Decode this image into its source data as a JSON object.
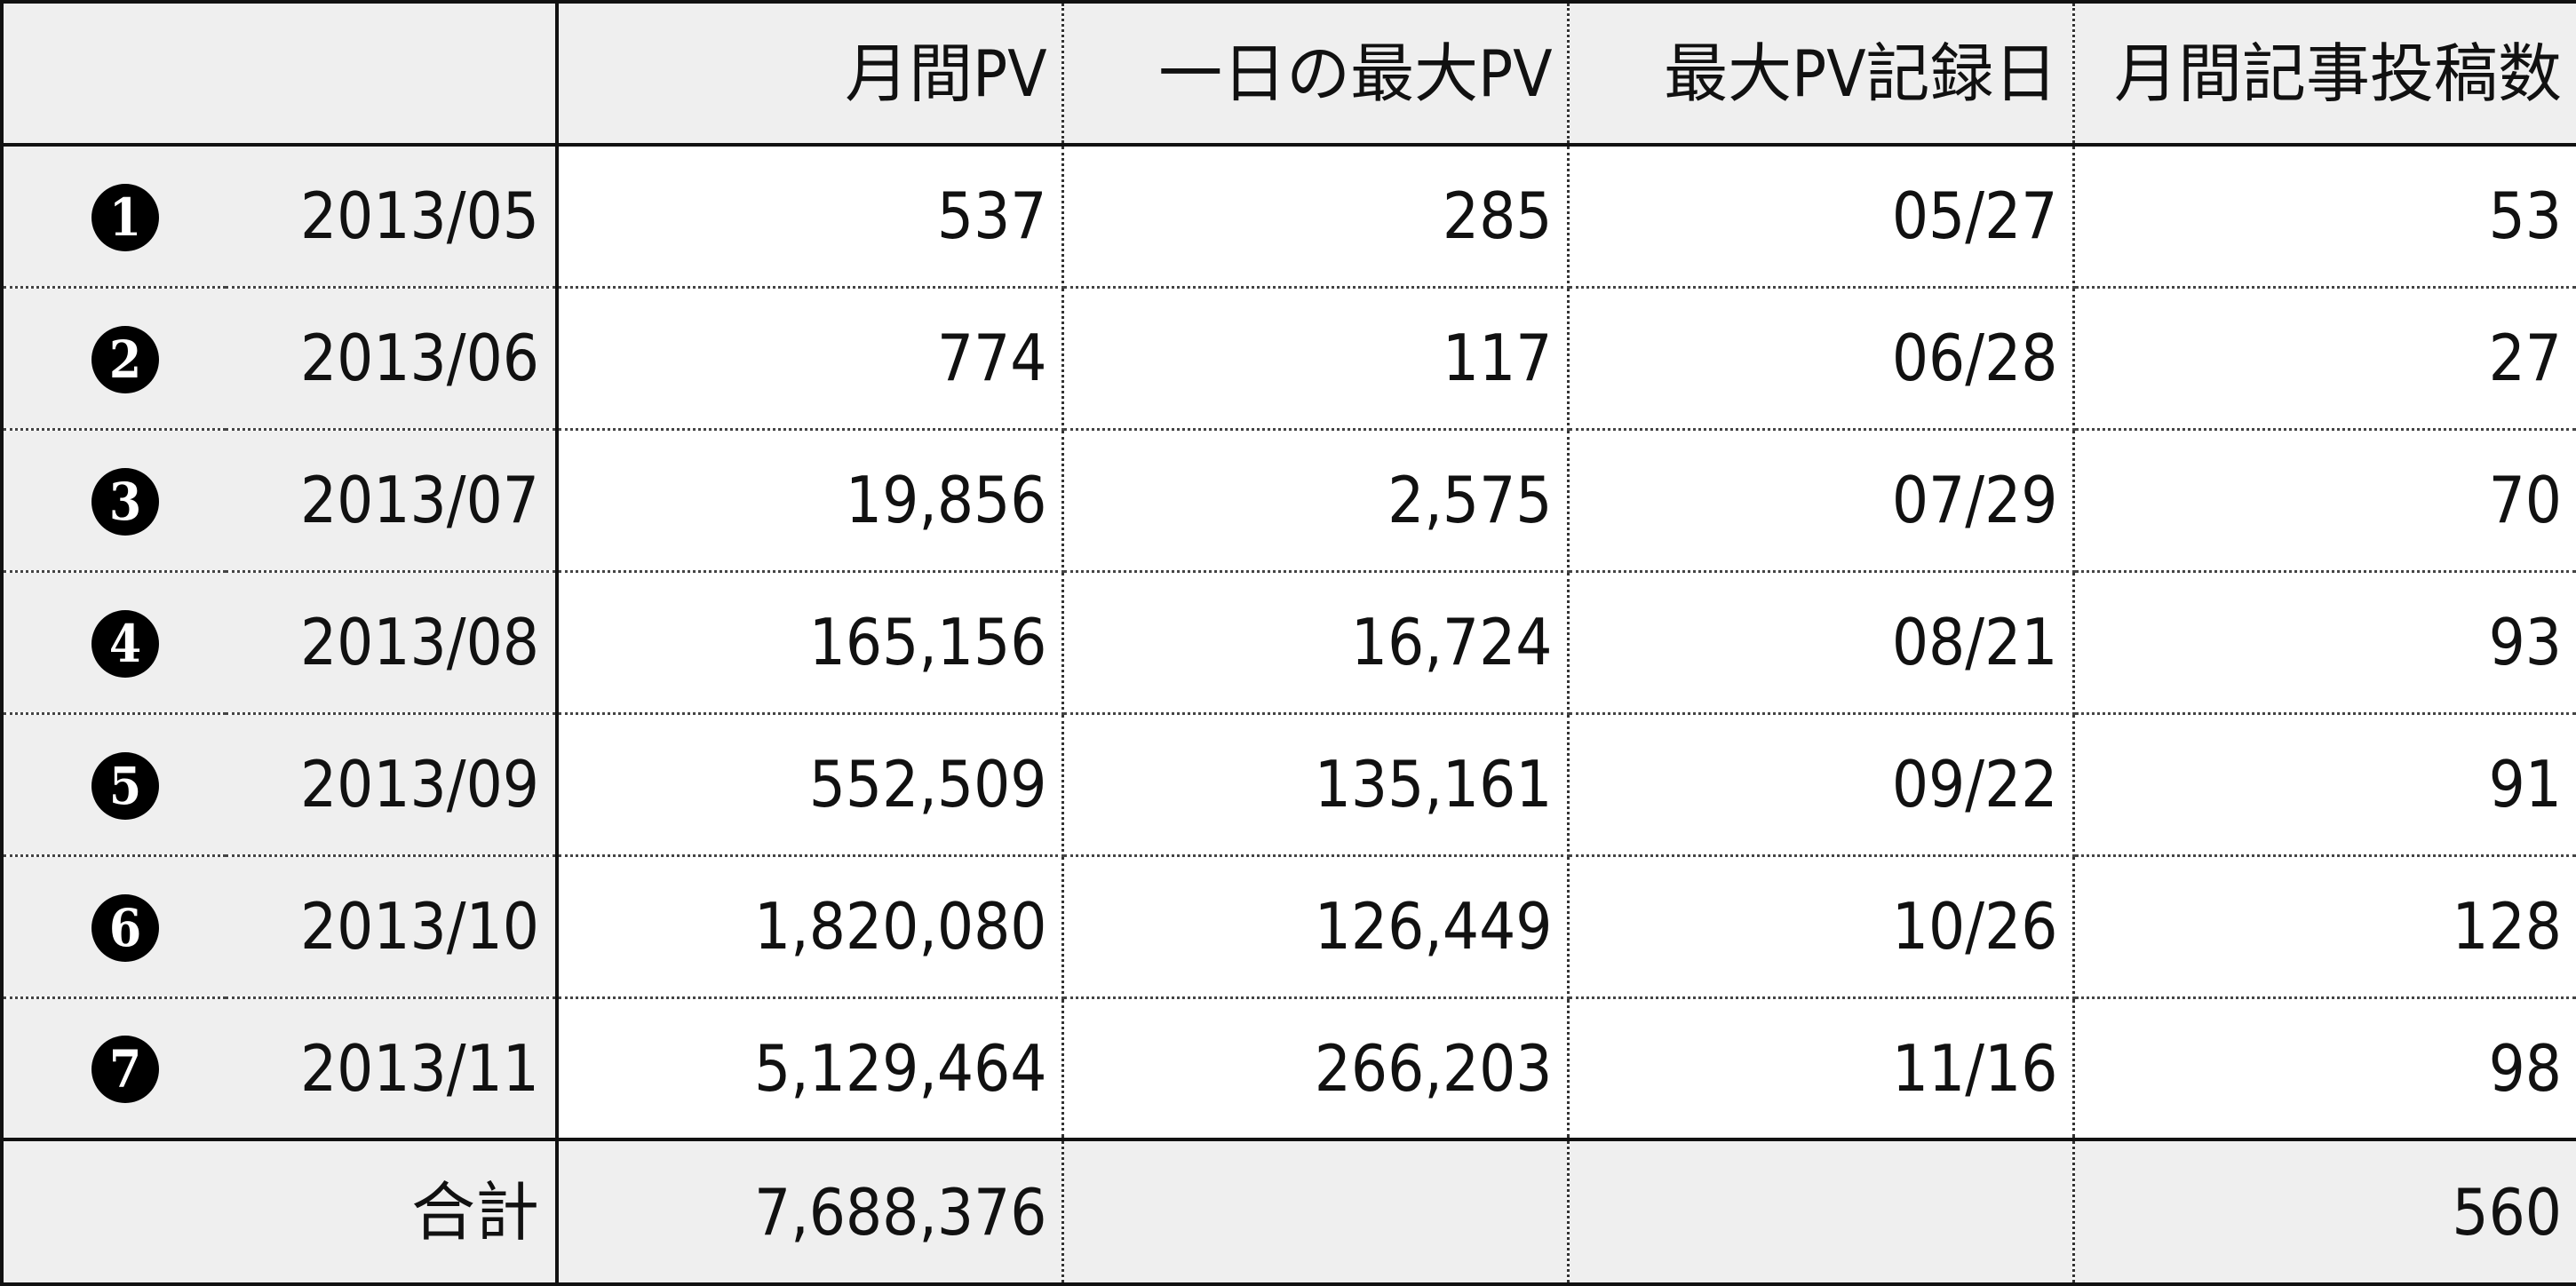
{
  "table": {
    "headers": [
      "",
      "月間PV",
      "一日の最大PV",
      "最大PV記録日",
      "月間記事投稿数"
    ],
    "rows": [
      {
        "badge": "1",
        "month": "2013/05",
        "monthly_pv": "537",
        "max_daily_pv": "285",
        "max_pv_date": "05/27",
        "posts": "53"
      },
      {
        "badge": "2",
        "month": "2013/06",
        "monthly_pv": "774",
        "max_daily_pv": "117",
        "max_pv_date": "06/28",
        "posts": "27"
      },
      {
        "badge": "3",
        "month": "2013/07",
        "monthly_pv": "19,856",
        "max_daily_pv": "2,575",
        "max_pv_date": "07/29",
        "posts": "70"
      },
      {
        "badge": "4",
        "month": "2013/08",
        "monthly_pv": "165,156",
        "max_daily_pv": "16,724",
        "max_pv_date": "08/21",
        "posts": "93"
      },
      {
        "badge": "5",
        "month": "2013/09",
        "monthly_pv": "552,509",
        "max_daily_pv": "135,161",
        "max_pv_date": "09/22",
        "posts": "91"
      },
      {
        "badge": "6",
        "month": "2013/10",
        "monthly_pv": "1,820,080",
        "max_daily_pv": "126,449",
        "max_pv_date": "10/26",
        "posts": "128"
      },
      {
        "badge": "7",
        "month": "2013/11",
        "monthly_pv": "5,129,464",
        "max_daily_pv": "266,203",
        "max_pv_date": "11/16",
        "posts": "98"
      }
    ],
    "total": {
      "label": "合計",
      "monthly_pv": "7,688,376",
      "max_daily_pv": "",
      "max_pv_date": "",
      "posts": "560"
    }
  },
  "colors": {
    "label_background": "#efefef",
    "badge_background": "#000000",
    "border": "#111111"
  }
}
